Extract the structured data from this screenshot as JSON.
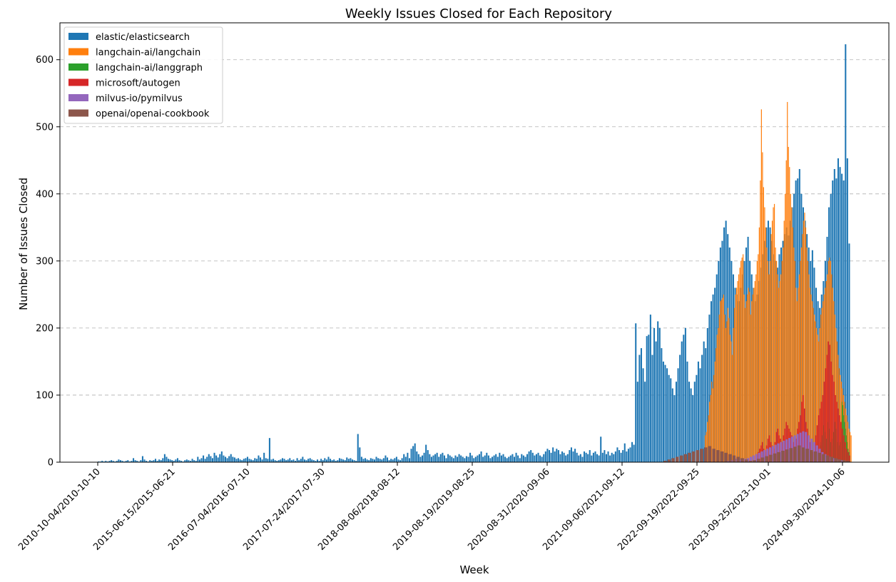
{
  "chart_data": {
    "type": "bar",
    "title": "Weekly Issues Closed for Each Repository",
    "xlabel": "Week",
    "ylabel": "Number of Issues Closed",
    "ylim": [
      0,
      655
    ],
    "yticks": [
      0,
      100,
      200,
      300,
      400,
      500,
      600
    ],
    "grid": "y-dashed",
    "legend_position": "top-left",
    "x_tick_labels": [
      "2010-10-04/2010-10-10",
      "2015-06-15/2015-06-21",
      "2016-07-04/2016-07-10",
      "2017-07-24/2017-07-30",
      "2018-08-06/2018-08-12",
      "2019-08-19/2019-08-25",
      "2020-08-31/2020-09-06",
      "2021-09-06/2021-09-12",
      "2022-09-19/2022-09-25",
      "2023-09-25/2023-10-01",
      "2024-09-30/2024-10-06"
    ],
    "series": [
      {
        "name": "elastic/elasticsearch",
        "color": "#1f77b4",
        "note_values": "weekly counts, sampled",
        "values": [
          1,
          1,
          2,
          1,
          2,
          1,
          2,
          3,
          2,
          1,
          2,
          4,
          3,
          2,
          1,
          2,
          3,
          1,
          2,
          6,
          3,
          2,
          1,
          3,
          9,
          4,
          2,
          1,
          3,
          2,
          3,
          5,
          2,
          4,
          3,
          6,
          12,
          8,
          5,
          4,
          3,
          2,
          4,
          6,
          3,
          2,
          1,
          3,
          4,
          3,
          2,
          5,
          3,
          2,
          8,
          4,
          6,
          10,
          5,
          8,
          12,
          9,
          6,
          14,
          10,
          7,
          12,
          16,
          10,
          8,
          6,
          9,
          12,
          8,
          7,
          5,
          6,
          4,
          3,
          5,
          6,
          8,
          5,
          4,
          3,
          6,
          5,
          10,
          7,
          4,
          14,
          6,
          5,
          36,
          4,
          5,
          3,
          2,
          3,
          4,
          6,
          5,
          3,
          4,
          6,
          3,
          4,
          2,
          6,
          3,
          5,
          8,
          4,
          3,
          5,
          6,
          4,
          3,
          2,
          4,
          2,
          5,
          3,
          6,
          4,
          8,
          5,
          3,
          4,
          2,
          3,
          6,
          5,
          4,
          3,
          7,
          5,
          6,
          4,
          3,
          2,
          42,
          22,
          8,
          5,
          6,
          4,
          3,
          6,
          5,
          4,
          8,
          6,
          5,
          4,
          6,
          10,
          7,
          3,
          5,
          4,
          6,
          8,
          4,
          3,
          6,
          12,
          8,
          14,
          6,
          20,
          24,
          28,
          16,
          12,
          8,
          10,
          14,
          26,
          18,
          12,
          8,
          10,
          12,
          14,
          8,
          12,
          14,
          10,
          6,
          12,
          10,
          8,
          6,
          10,
          8,
          12,
          10,
          8,
          6,
          9,
          8,
          14,
          10,
          6,
          8,
          10,
          12,
          16,
          8,
          10,
          14,
          10,
          6,
          8,
          10,
          12,
          8,
          14,
          10,
          12,
          8,
          6,
          8,
          10,
          12,
          8,
          14,
          10,
          6,
          12,
          10,
          8,
          12,
          16,
          18,
          14,
          10,
          12,
          14,
          10,
          8,
          12,
          16,
          20,
          18,
          14,
          22,
          16,
          20,
          18,
          12,
          16,
          14,
          10,
          12,
          18,
          22,
          16,
          20,
          14,
          10,
          12,
          8,
          16,
          14,
          12,
          18,
          10,
          14,
          16,
          12,
          10,
          38,
          14,
          18,
          12,
          16,
          10,
          14,
          12,
          16,
          22,
          18,
          14,
          18,
          28,
          16,
          20,
          22,
          30,
          26,
          207,
          120,
          160,
          170,
          140,
          120,
          188,
          190,
          220,
          160,
          200,
          180,
          210,
          200,
          170,
          150,
          145,
          140,
          130,
          125,
          110,
          100,
          120,
          140,
          160,
          180,
          190,
          200,
          150,
          120,
          110,
          100,
          120,
          130,
          150,
          140,
          160,
          180,
          170,
          200,
          220,
          240,
          250,
          260,
          280,
          300,
          320,
          330,
          350,
          360,
          340,
          320,
          300,
          280,
          260,
          250,
          240,
          260,
          280,
          300,
          320,
          336,
          300,
          280,
          260,
          240,
          250,
          270,
          290,
          310,
          330,
          350,
          360,
          350,
          330,
          310,
          300,
          290,
          310,
          320,
          330,
          340,
          350,
          338,
          360,
          380,
          400,
          420,
          423,
          437,
          400,
          380,
          360,
          340,
          320,
          300,
          316,
          290,
          260,
          240,
          230,
          250,
          270,
          300,
          336,
          380,
          400,
          420,
          437,
          423,
          453,
          440,
          430,
          420,
          623,
          453,
          326
        ]
      },
      {
        "name": "langchain-ai/langchain",
        "color": "#ff7f0e",
        "values": [
          40,
          45,
          60,
          70,
          90,
          100,
          120,
          110,
          130,
          150,
          170,
          190,
          200,
          220,
          240,
          242,
          245,
          250,
          220,
          200,
          210,
          230,
          215,
          190,
          180,
          160,
          200,
          230,
          250,
          260,
          270,
          280,
          290,
          300,
          305,
          310,
          250,
          230,
          240,
          250,
          260,
          254,
          220,
          240,
          250,
          260,
          270,
          280,
          300,
          310,
          350,
          420,
          526,
          462,
          410,
          380,
          350,
          320,
          300,
          280,
          300,
          340,
          360,
          380,
          385,
          320,
          300,
          280,
          260,
          270,
          280,
          300,
          320,
          360,
          400,
          450,
          537,
          470,
          440,
          400,
          380,
          350,
          320,
          300,
          260,
          240,
          260,
          280,
          300,
          320,
          340,
          360,
          372,
          350,
          320,
          300,
          280,
          260,
          250,
          240,
          230,
          220,
          210,
          200,
          190,
          180,
          200,
          220,
          230,
          240,
          250,
          260,
          270,
          280,
          300,
          305,
          300,
          280,
          260,
          240,
          220,
          200,
          180,
          160,
          140,
          130,
          120,
          110,
          100,
          90,
          80,
          70,
          60,
          50,
          45,
          40
        ]
      },
      {
        "name": "langchain-ai/langgraph",
        "color": "#2ca02c",
        "values": [
          20,
          25,
          30,
          40,
          60,
          55,
          45,
          40,
          35,
          50,
          60,
          50,
          40,
          30,
          25,
          35,
          45,
          55,
          60,
          50,
          40,
          30,
          20,
          25,
          30,
          40,
          90,
          85,
          70,
          60,
          50,
          40,
          30,
          20,
          15,
          10
        ]
      },
      {
        "name": "microsoft/autogen",
        "color": "#d62728",
        "values": [
          10,
          15,
          20,
          25,
          30,
          20,
          15,
          25,
          35,
          40,
          30,
          25,
          20,
          30,
          45,
          50,
          40,
          35,
          30,
          40,
          50,
          60,
          55,
          50,
          45,
          40,
          30,
          25,
          35,
          50,
          60,
          70,
          90,
          100,
          80,
          60,
          50,
          40,
          30,
          20,
          15,
          25,
          40,
          55,
          70,
          80,
          90,
          100,
          120,
          140,
          160,
          180,
          175,
          150,
          130,
          120,
          100,
          90,
          80,
          70,
          60,
          50,
          40,
          30,
          20,
          15,
          10
        ]
      },
      {
        "name": "milvus-io/pymilvus",
        "color": "#9467bd",
        "values": [
          2,
          3,
          4,
          5,
          4,
          3,
          5,
          6,
          8,
          10,
          12,
          14,
          16,
          18,
          20,
          22,
          24,
          26,
          28,
          30,
          32,
          34,
          36,
          38,
          40,
          42,
          44,
          46,
          45,
          40,
          35,
          30,
          25,
          20,
          15,
          12,
          10,
          8,
          6,
          5,
          4,
          3,
          2,
          1
        ]
      },
      {
        "name": "openai/openai-cookbook",
        "color": "#8c564b",
        "values": [
          2,
          4,
          6,
          8,
          10,
          12,
          14,
          16,
          18,
          20,
          22,
          24,
          20,
          18,
          16,
          14,
          12,
          10,
          8,
          6,
          4,
          2,
          3,
          5,
          7,
          9,
          11,
          13,
          15,
          17,
          19,
          21,
          23,
          25,
          22,
          20,
          18,
          16,
          14,
          12,
          10,
          8,
          6,
          4,
          3,
          2
        ]
      }
    ]
  },
  "legend": {
    "items": [
      {
        "label": "elastic/elasticsearch",
        "color": "#1f77b4"
      },
      {
        "label": "langchain-ai/langchain",
        "color": "#ff7f0e"
      },
      {
        "label": "langchain-ai/langgraph",
        "color": "#2ca02c"
      },
      {
        "label": "microsoft/autogen",
        "color": "#d62728"
      },
      {
        "label": "milvus-io/pymilvus",
        "color": "#9467bd"
      },
      {
        "label": "openai/openai-cookbook",
        "color": "#8c564b"
      }
    ]
  }
}
